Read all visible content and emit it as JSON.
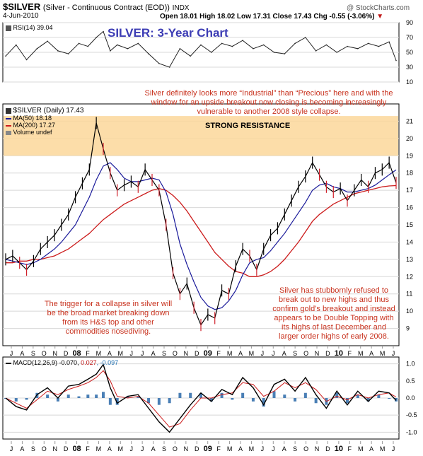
{
  "header": {
    "ticker": "$SILVER",
    "description": "(Silver - Continuous Contract (EOD))",
    "exchange": "INDX",
    "date": "4-Jun-2010",
    "ohlc": "Open 18.01  High 18.02  Low 17.31  Close 17.43  Chg -0.55 (-3.06%)",
    "watermark": "@ StockCharts.com"
  },
  "title": "SILVER: 3-Year Chart",
  "legend": {
    "rsi": "RSI(14) 39.04",
    "price": "$SILVER (Daily) 17.43",
    "ma50": "MA(50) 18.18",
    "ma200": "MA(200) 17.27",
    "volume": "Volume undef",
    "macd_label": "MACD(12,26,9)",
    "macd_vals": [
      " -0.070, ",
      "0.027",
      ", -0.097"
    ]
  },
  "annotations": {
    "top": "Silver definitely looks more “Industrial” than “Precious” here and with the window for an upside breakout now closing is becoming increasingly vulnerable to another 2008 style collapse.",
    "resistance": "STRONG RESISTANCE",
    "left": "The trigger for a collapse in silver will be the broad market breaking down from its H&S top and other commodities nosediving.",
    "right": "Silver has stubbornly refused to break out to new highs and thus confirm gold’s breakout and instead appears to be Double Topping with its highs of last December and larger order highs of early 2008."
  },
  "colors": {
    "price": "#000000",
    "down": "#d0202a",
    "ma50": "#1a1a9a",
    "ma200": "#cc1b1b",
    "resistance_band": "#fbd79a",
    "annotation": "#c8321e",
    "title": "#3c3cb4",
    "rsi_fill": "#2e8b2e"
  },
  "chart_data": [
    {
      "type": "line",
      "name": "RSI(14)",
      "ylim": [
        10,
        90
      ],
      "yticks": [
        "90",
        "70",
        "50",
        "30",
        "10"
      ],
      "ytick_values": [
        90,
        70,
        50,
        30,
        10
      ],
      "x": [
        0,
        15,
        30,
        45,
        60,
        75,
        90,
        105,
        118,
        130,
        140,
        150,
        160,
        175,
        190,
        205,
        220,
        235,
        250,
        265,
        280,
        295,
        310,
        325,
        340,
        355,
        370,
        385,
        400,
        415,
        430,
        445,
        460,
        475,
        490,
        505,
        520,
        535,
        550,
        560
      ],
      "values": [
        45,
        60,
        40,
        55,
        65,
        52,
        48,
        62,
        58,
        70,
        78,
        52,
        60,
        55,
        62,
        48,
        35,
        30,
        55,
        45,
        60,
        50,
        62,
        58,
        66,
        55,
        60,
        50,
        48,
        62,
        70,
        52,
        60,
        50,
        58,
        55,
        62,
        58,
        64,
        39
      ]
    },
    {
      "type": "line",
      "name": "$SILVER",
      "ylim": [
        8,
        22
      ],
      "yticks": [
        "21",
        "20",
        "19",
        "18",
        "17",
        "16",
        "15",
        "14",
        "13",
        "12",
        "11",
        "10",
        "9"
      ],
      "ytick_values": [
        21,
        20,
        19,
        18,
        17,
        16,
        15,
        14,
        13,
        12,
        11,
        10,
        9
      ],
      "x_ticks": [
        "J",
        "A",
        "S",
        "O",
        "N",
        "D",
        "08",
        "F",
        "M",
        "A",
        "M",
        "J",
        "J",
        "A",
        "S",
        "O",
        "N",
        "D",
        "09",
        "F",
        "M",
        "A",
        "M",
        "J",
        "J",
        "A",
        "S",
        "O",
        "N",
        "D",
        "10",
        "F",
        "M",
        "A",
        "M",
        "J"
      ],
      "x": [
        0,
        10,
        20,
        30,
        40,
        50,
        60,
        70,
        80,
        90,
        100,
        110,
        120,
        130,
        140,
        150,
        160,
        170,
        180,
        190,
        200,
        210,
        220,
        230,
        240,
        250,
        260,
        270,
        280,
        290,
        300,
        310,
        320,
        330,
        340,
        350,
        360,
        370,
        380,
        390,
        400,
        410,
        420,
        430,
        440,
        450,
        460,
        470,
        480,
        490,
        500,
        510,
        520,
        530,
        540,
        550,
        560
      ],
      "close": [
        13.0,
        13.2,
        12.8,
        12.4,
        12.9,
        13.6,
        14.0,
        14.4,
        15.0,
        15.6,
        16.6,
        17.4,
        18.2,
        20.9,
        19.4,
        18.0,
        17.0,
        17.3,
        17.5,
        17.2,
        18.2,
        17.6,
        17.0,
        15.0,
        12.2,
        11.0,
        11.6,
        10.2,
        9.2,
        9.8,
        9.6,
        11.2,
        11.0,
        12.6,
        13.6,
        13.2,
        12.4,
        13.6,
        14.4,
        14.8,
        15.6,
        16.4,
        17.2,
        17.8,
        18.6,
        17.9,
        17.2,
        16.9,
        17.1,
        16.4,
        17.0,
        17.6,
        17.2,
        18.0,
        18.2,
        18.6,
        17.43
      ],
      "ma50": [
        13.0,
        12.9,
        12.8,
        12.7,
        12.8,
        13.0,
        13.3,
        13.6,
        14.0,
        14.5,
        15.0,
        15.8,
        16.6,
        17.6,
        18.4,
        18.6,
        18.2,
        17.7,
        17.5,
        17.5,
        17.6,
        17.7,
        17.6,
        16.9,
        15.6,
        13.9,
        12.7,
        11.7,
        10.8,
        10.3,
        10.1,
        10.2,
        10.6,
        11.2,
        12.1,
        12.8,
        13.0,
        13.1,
        13.5,
        14.0,
        14.5,
        15.1,
        15.7,
        16.3,
        17.0,
        17.3,
        17.4,
        17.2,
        17.1,
        16.9,
        16.9,
        17.0,
        17.1,
        17.3,
        17.6,
        17.9,
        18.18
      ],
      "ma200": [
        12.8,
        12.8,
        12.9,
        12.9,
        13.0,
        13.0,
        13.1,
        13.2,
        13.4,
        13.6,
        13.9,
        14.2,
        14.5,
        14.9,
        15.3,
        15.6,
        15.9,
        16.2,
        16.4,
        16.6,
        16.8,
        17.0,
        17.1,
        17.0,
        16.7,
        16.3,
        15.8,
        15.2,
        14.6,
        14.0,
        13.4,
        13.0,
        12.6,
        12.3,
        12.2,
        12.0,
        12.0,
        12.1,
        12.3,
        12.6,
        13.0,
        13.5,
        14.0,
        14.6,
        15.2,
        15.6,
        15.9,
        16.2,
        16.4,
        16.6,
        16.8,
        16.9,
        17.0,
        17.1,
        17.2,
        17.25,
        17.27
      ],
      "resistance_band": [
        19.0,
        21.3
      ]
    },
    {
      "type": "line",
      "name": "MACD(12,26,9)",
      "ylim": [
        -1.2,
        1.2
      ],
      "yticks": [
        "1.0",
        "0.5",
        "0.0",
        "-0.5",
        "-1.0"
      ],
      "ytick_values": [
        1.0,
        0.5,
        0.0,
        -0.5,
        -1.0
      ],
      "x": [
        0,
        15,
        30,
        45,
        60,
        75,
        90,
        105,
        118,
        130,
        140,
        150,
        160,
        175,
        190,
        205,
        220,
        235,
        250,
        265,
        280,
        295,
        310,
        325,
        340,
        355,
        370,
        385,
        400,
        415,
        430,
        445,
        460,
        475,
        490,
        505,
        520,
        535,
        550,
        560
      ],
      "macd": [
        0.0,
        -0.25,
        -0.35,
        0.1,
        0.3,
        0.0,
        0.35,
        0.4,
        0.55,
        0.7,
        0.98,
        0.3,
        -0.15,
        0.05,
        0.1,
        -0.3,
        -0.7,
        -1.0,
        -0.6,
        -0.2,
        0.15,
        -0.1,
        0.25,
        0.1,
        0.6,
        0.3,
        -0.2,
        0.4,
        0.55,
        0.2,
        0.6,
        0.1,
        -0.3,
        0.2,
        -0.2,
        0.2,
        -0.1,
        0.2,
        0.15,
        -0.07
      ],
      "signal": [
        0.0,
        -0.15,
        -0.3,
        -0.05,
        0.2,
        0.1,
        0.25,
        0.35,
        0.45,
        0.6,
        0.8,
        0.5,
        0.05,
        0.0,
        0.05,
        -0.15,
        -0.5,
        -0.85,
        -0.75,
        -0.35,
        0.0,
        0.0,
        0.1,
        0.15,
        0.45,
        0.4,
        0.05,
        0.2,
        0.45,
        0.3,
        0.45,
        0.25,
        -0.1,
        0.05,
        -0.05,
        0.1,
        0.0,
        0.1,
        0.15,
        0.03
      ],
      "x_ticks": [
        "J",
        "A",
        "S",
        "O",
        "N",
        "D",
        "08",
        "F",
        "M",
        "A",
        "M",
        "J",
        "J",
        "A",
        "S",
        "O",
        "N",
        "D",
        "09",
        "F",
        "M",
        "A",
        "M",
        "J",
        "J",
        "A",
        "S",
        "O",
        "N",
        "D",
        "10",
        "F",
        "M",
        "A",
        "M",
        "J"
      ]
    }
  ]
}
